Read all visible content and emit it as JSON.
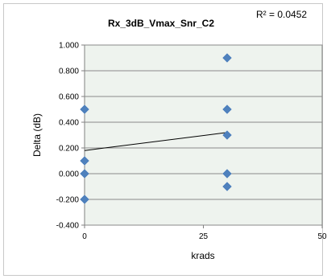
{
  "chart_data": {
    "type": "scatter",
    "title": "Rx_3dB_Vmax_Snr_C2",
    "annotation": "R² = 0.0452",
    "xlabel": "krads",
    "ylabel": "Delta (dB)",
    "xlim": [
      0,
      50
    ],
    "ylim": [
      -0.4,
      1.0
    ],
    "x_ticks": [
      "0",
      "25",
      "50"
    ],
    "y_ticks": [
      "-0.400",
      "-0.200",
      "0.000",
      "0.200",
      "0.400",
      "0.600",
      "0.800",
      "1.000"
    ],
    "grid": true,
    "plot_background": "#eef3ee",
    "marker_color": "#4f81bd",
    "points": [
      {
        "x": 0,
        "y": 0.5
      },
      {
        "x": 0,
        "y": 0.1
      },
      {
        "x": 0,
        "y": 0.0
      },
      {
        "x": 0,
        "y": -0.2
      },
      {
        "x": 30,
        "y": 0.9
      },
      {
        "x": 30,
        "y": 0.5
      },
      {
        "x": 30,
        "y": 0.3
      },
      {
        "x": 30,
        "y": 0.0
      },
      {
        "x": 30,
        "y": -0.1
      }
    ],
    "trendline": {
      "type": "linear",
      "x": [
        0,
        30
      ],
      "y": [
        0.18,
        0.32
      ]
    }
  }
}
